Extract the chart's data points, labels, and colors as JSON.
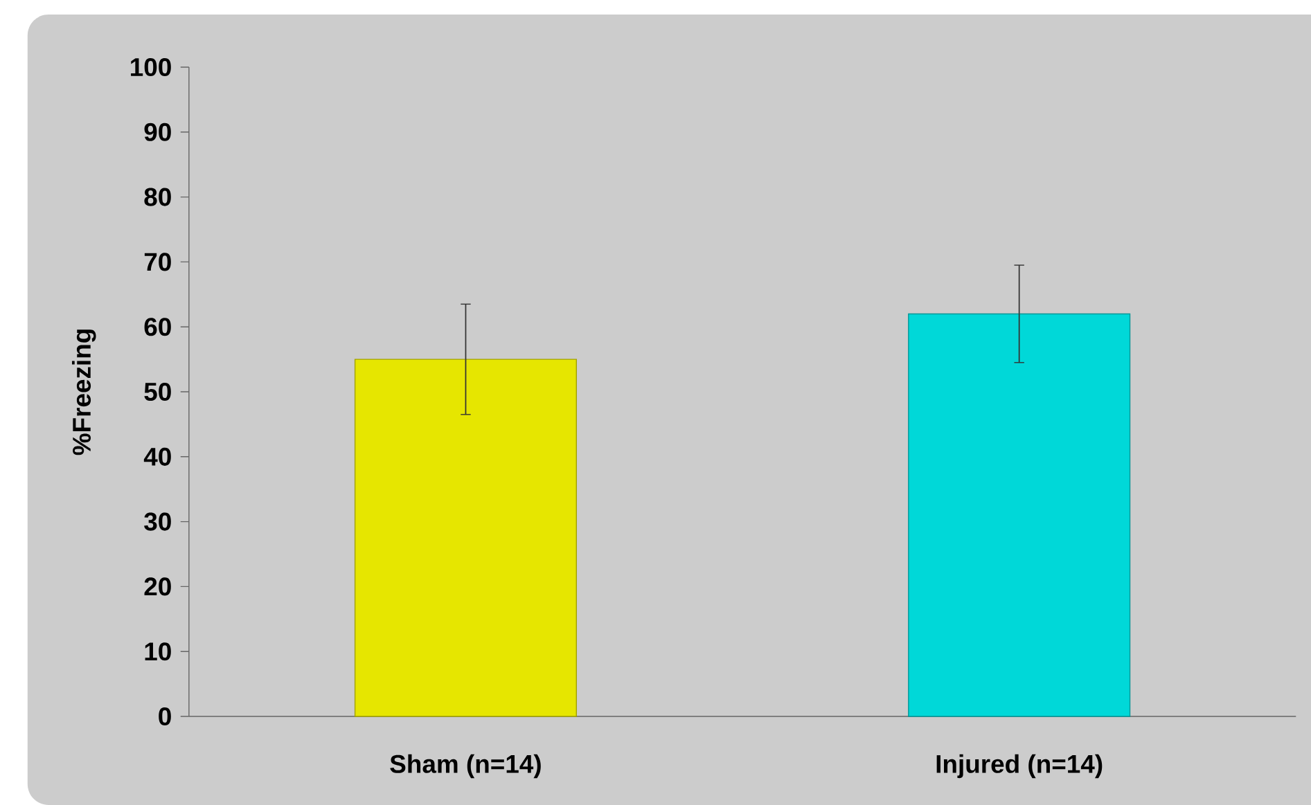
{
  "chart_data": {
    "type": "bar",
    "ylabel": "%Freezing",
    "categories": [
      "Sham (n=14)",
      "Injured (n=14)"
    ],
    "values": [
      55,
      62
    ],
    "errors": [
      8.5,
      7.5
    ],
    "colors": [
      "#e6e600",
      "#00d8d8"
    ],
    "ylim": [
      0,
      100
    ],
    "yticks": [
      0,
      10,
      20,
      30,
      40,
      50,
      60,
      70,
      80,
      90,
      100
    ]
  }
}
